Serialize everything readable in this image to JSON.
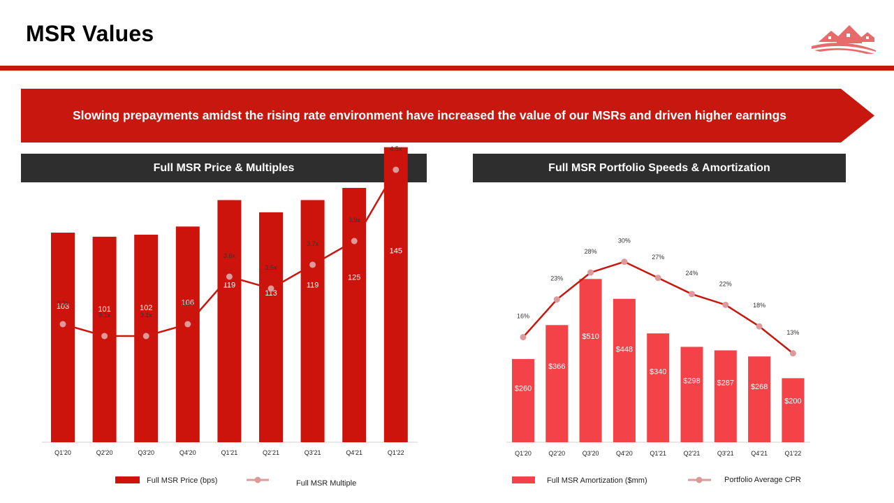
{
  "header": {
    "title": "MSR Values"
  },
  "banner": {
    "text": "Slowing prepayments amidst the rising rate environment have increased the value of our MSRs and driven higher earnings"
  },
  "colors": {
    "brand_red": "#c8170f",
    "bar_red_left": "#cc140c",
    "bar_red_right": "#f44348",
    "line_red": "#c8170f",
    "marker_pink": "#dc9a9a",
    "header_dark": "#2e2e2e"
  },
  "chart_data": [
    {
      "id": "msr-price",
      "type": "bar",
      "title": "Full MSR Price & Multiples",
      "categories": [
        "Q1'20",
        "Q2'20",
        "Q3'20",
        "Q4'20",
        "Q1'21",
        "Q2’21",
        "Q3'21",
        "Q4'21",
        "Q1'22"
      ],
      "series": [
        {
          "name": "Full MSR Price (bps)",
          "kind": "bar",
          "values": [
            103,
            101,
            102,
            106,
            119,
            113,
            119,
            125,
            145
          ],
          "labels": [
            "103",
            "101",
            "102",
            "106",
            "119",
            "113",
            "119",
            "125",
            "145"
          ]
        },
        {
          "name": "Full MSR Multiple",
          "kind": "line",
          "values": [
            3.2,
            3.1,
            3.1,
            3.2,
            3.6,
            3.5,
            3.7,
            3.9,
            4.5
          ],
          "labels": [
            "3.2x",
            "3.1x",
            "3.1x",
            "3.2x",
            "3.6x",
            "3.5x",
            "3.7x",
            "3.9x",
            "4.5x"
          ]
        }
      ],
      "ylim_bar": [
        0,
        160
      ],
      "ylim_line": [
        0,
        5
      ],
      "legend": "bottom"
    },
    {
      "id": "msr-speeds",
      "type": "bar",
      "title": "Full MSR Portfolio Speeds & Amortization",
      "categories": [
        "Q1'20",
        "Q2'20",
        "Q3'20",
        "Q4'20",
        "Q1'21",
        "Q2'21",
        "Q3'21",
        "Q4'21",
        "Q1'22"
      ],
      "series": [
        {
          "name": "Full MSR Amortization ($mm)",
          "kind": "bar",
          "values": [
            260,
            366,
            510,
            448,
            340,
            298,
            287,
            268,
            200
          ],
          "labels": [
            "$260",
            "$366",
            "$510",
            "$448",
            "$340",
            "$298",
            "$287",
            "$268",
            "$200"
          ]
        },
        {
          "name": "Portfolio Average CPR",
          "kind": "line",
          "values": [
            16,
            23,
            28,
            30,
            27,
            24,
            22,
            18,
            13
          ],
          "labels": [
            "16%",
            "23%",
            "28%",
            "30%",
            "27%",
            "24%",
            "22%",
            "18%",
            "13%"
          ]
        }
      ],
      "ylim_bar": [
        0,
        550
      ],
      "ylim_line": [
        0,
        45
      ],
      "legend": "bottom"
    }
  ]
}
